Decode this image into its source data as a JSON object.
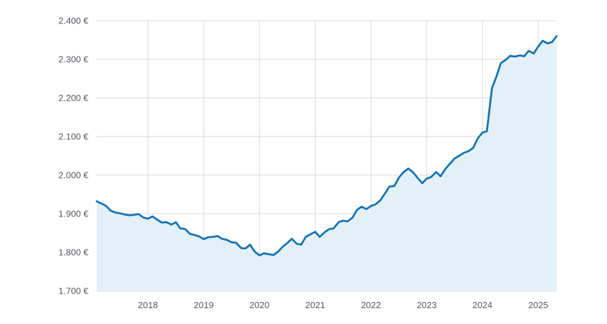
{
  "chart_data": {
    "type": "area",
    "title": "",
    "xlabel": "",
    "ylabel": "",
    "x_range": [
      2017.08,
      2025.33
    ],
    "ylim": [
      1700,
      2400
    ],
    "y_ticks": [
      {
        "value": 1700,
        "label": "1.700 €"
      },
      {
        "value": 1800,
        "label": "1.800 €"
      },
      {
        "value": 1900,
        "label": "1.900 €"
      },
      {
        "value": 2000,
        "label": "2.000 €"
      },
      {
        "value": 2100,
        "label": "2.100 €"
      },
      {
        "value": 2200,
        "label": "2.200 €"
      },
      {
        "value": 2300,
        "label": "2.300 €"
      },
      {
        "value": 2400,
        "label": "2.400 €"
      }
    ],
    "x_ticks": [
      {
        "value": 2018,
        "label": "2018"
      },
      {
        "value": 2019,
        "label": "2019"
      },
      {
        "value": 2020,
        "label": "2020"
      },
      {
        "value": 2021,
        "label": "2021"
      },
      {
        "value": 2022,
        "label": "2022"
      },
      {
        "value": 2023,
        "label": "2023"
      },
      {
        "value": 2024,
        "label": "2024"
      },
      {
        "value": 2025,
        "label": "2025"
      }
    ],
    "grid": true,
    "legend": "none",
    "colors": {
      "line": "#1273b6",
      "area": "#e3f0f8",
      "grid": "#d8d8d8",
      "axis": "#c8c8c8",
      "text": "#555a60"
    },
    "series": [
      {
        "x": [
          2017.08,
          2017.17,
          2017.25,
          2017.33,
          2017.42,
          2017.5,
          2017.58,
          2017.67,
          2017.75,
          2017.83,
          2017.92,
          2018.0,
          2018.08,
          2018.17,
          2018.25,
          2018.33,
          2018.42,
          2018.5,
          2018.58,
          2018.67,
          2018.75,
          2018.83,
          2018.92,
          2019.0,
          2019.08,
          2019.17,
          2019.25,
          2019.33,
          2019.42,
          2019.5,
          2019.58,
          2019.67,
          2019.75,
          2019.83,
          2019.92,
          2020.0,
          2020.08,
          2020.17,
          2020.25,
          2020.33,
          2020.42,
          2020.5,
          2020.58,
          2020.67,
          2020.75,
          2020.83,
          2020.92,
          2021.0,
          2021.08,
          2021.17,
          2021.25,
          2021.33,
          2021.42,
          2021.5,
          2021.58,
          2021.67,
          2021.75,
          2021.83,
          2021.92,
          2022.0,
          2022.08,
          2022.17,
          2022.25,
          2022.33,
          2022.42,
          2022.5,
          2022.58,
          2022.67,
          2022.75,
          2022.83,
          2022.92,
          2023.0,
          2023.08,
          2023.17,
          2023.25,
          2023.33,
          2023.42,
          2023.5,
          2023.58,
          2023.67,
          2023.75,
          2023.83,
          2023.92,
          2024.0,
          2024.08,
          2024.17,
          2024.25,
          2024.33,
          2024.42,
          2024.5,
          2024.58,
          2024.67,
          2024.75,
          2024.83,
          2024.92,
          2025.0,
          2025.08,
          2025.17,
          2025.25,
          2025.33
        ],
        "values": [
          1932,
          1926,
          1920,
          1908,
          1903,
          1901,
          1898,
          1896,
          1897,
          1899,
          1890,
          1887,
          1893,
          1884,
          1877,
          1878,
          1872,
          1878,
          1862,
          1860,
          1848,
          1845,
          1841,
          1834,
          1839,
          1840,
          1842,
          1835,
          1832,
          1826,
          1825,
          1811,
          1810,
          1820,
          1801,
          1792,
          1797,
          1795,
          1793,
          1801,
          1815,
          1824,
          1835,
          1822,
          1820,
          1840,
          1847,
          1853,
          1840,
          1852,
          1860,
          1862,
          1878,
          1882,
          1880,
          1890,
          1910,
          1918,
          1912,
          1920,
          1924,
          1935,
          1952,
          1970,
          1972,
          1993,
          2007,
          2017,
          2008,
          1994,
          1979,
          1991,
          1995,
          2008,
          1997,
          2015,
          2030,
          2043,
          2050,
          2058,
          2062,
          2070,
          2096,
          2110,
          2114,
          2225,
          2255,
          2290,
          2299,
          2309,
          2307,
          2310,
          2308,
          2322,
          2315,
          2333,
          2348,
          2341,
          2345,
          2360
        ]
      }
    ]
  }
}
